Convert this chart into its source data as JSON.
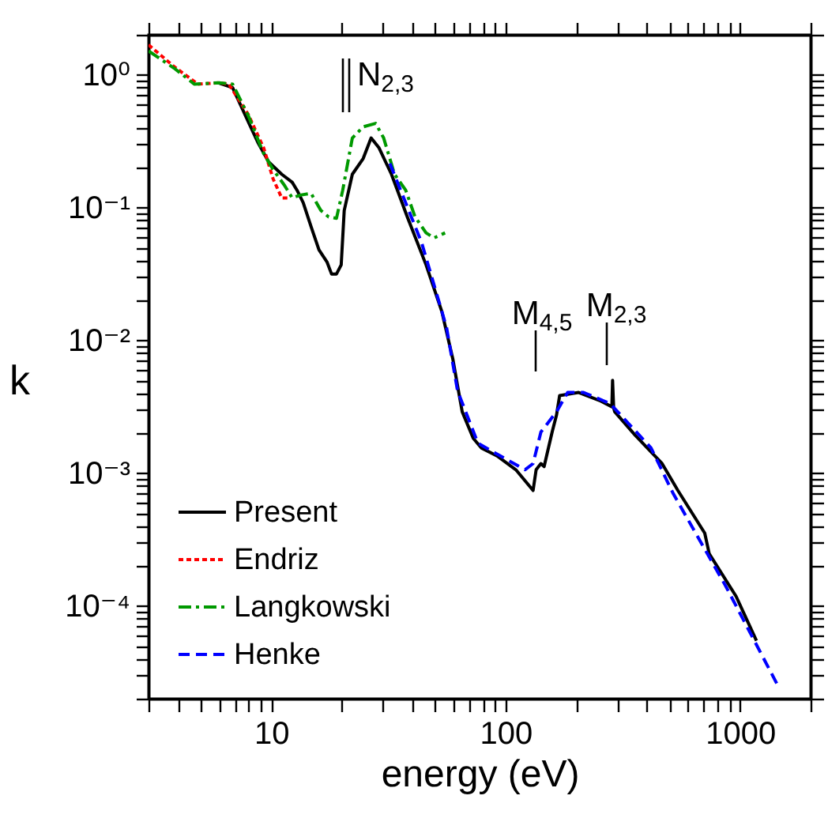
{
  "chart_data": {
    "type": "line",
    "xlabel": "energy (eV)",
    "ylabel": "k",
    "log": "xy",
    "grid": false,
    "legend": "bottom left",
    "xlim": [
      3,
      2000
    ],
    "ylim": [
      2e-05,
      2
    ],
    "xticks": [
      {
        "value": 3,
        "label": null
      },
      {
        "value": 4,
        "label": null
      },
      {
        "value": 5,
        "label": null
      },
      {
        "value": 6,
        "label": null
      },
      {
        "value": 7,
        "label": null
      },
      {
        "value": 8,
        "label": null
      },
      {
        "value": 9,
        "label": null
      },
      10,
      {
        "value": 20,
        "label": null
      },
      {
        "value": 30,
        "label": null
      },
      {
        "value": 40,
        "label": null
      },
      {
        "value": 50,
        "label": null
      },
      {
        "value": 60,
        "label": null
      },
      {
        "value": 70,
        "label": null
      },
      {
        "value": 80,
        "label": null
      },
      {
        "value": 90,
        "label": null
      },
      100,
      {
        "value": 200,
        "label": null
      },
      {
        "value": 300,
        "label": null
      },
      {
        "value": 400,
        "label": null
      },
      {
        "value": 500,
        "label": null
      },
      {
        "value": 600,
        "label": null
      },
      {
        "value": 700,
        "label": null
      },
      {
        "value": 800,
        "label": null
      },
      {
        "value": 900,
        "label": null
      },
      1000,
      {
        "value": 2000,
        "label": null
      }
    ],
    "yticks": [
      {
        "value": 2e-05,
        "label": null
      },
      {
        "value": 3e-05,
        "label": null
      },
      {
        "value": 4e-05,
        "label": null
      },
      {
        "value": 5e-05,
        "label": null
      },
      {
        "value": 6e-05,
        "label": null
      },
      {
        "value": 7e-05,
        "label": null
      },
      {
        "value": 8e-05,
        "label": null
      },
      {
        "value": 9e-05,
        "label": null
      },
      {
        "value": 0.0001,
        "label": "10⁻⁴"
      },
      {
        "value": 0.0002,
        "label": null
      },
      {
        "value": 0.0003,
        "label": null
      },
      {
        "value": 0.0004,
        "label": null
      },
      {
        "value": 0.0005,
        "label": null
      },
      {
        "value": 0.0006,
        "label": null
      },
      {
        "value": 0.0007,
        "label": null
      },
      {
        "value": 0.0008,
        "label": null
      },
      {
        "value": 0.0009,
        "label": null
      },
      {
        "value": 0.001,
        "label": "10⁻³"
      },
      {
        "value": 0.002,
        "label": null
      },
      {
        "value": 0.003,
        "label": null
      },
      {
        "value": 0.004,
        "label": null
      },
      {
        "value": 0.005,
        "label": null
      },
      {
        "value": 0.006,
        "label": null
      },
      {
        "value": 0.007,
        "label": null
      },
      {
        "value": 0.008,
        "label": null
      },
      {
        "value": 0.009,
        "label": null
      },
      {
        "value": 0.01,
        "label": "10⁻²"
      },
      {
        "value": 0.02,
        "label": null
      },
      {
        "value": 0.03,
        "label": null
      },
      {
        "value": 0.04,
        "label": null
      },
      {
        "value": 0.05,
        "label": null
      },
      {
        "value": 0.06,
        "label": null
      },
      {
        "value": 0.07,
        "label": null
      },
      {
        "value": 0.08,
        "label": null
      },
      {
        "value": 0.09,
        "label": null
      },
      {
        "value": 0.1,
        "label": "10⁻¹"
      },
      {
        "value": 0.2,
        "label": null
      },
      {
        "value": 0.3,
        "label": null
      },
      {
        "value": 0.4,
        "label": null
      },
      {
        "value": 0.5,
        "label": null
      },
      {
        "value": 0.6,
        "label": null
      },
      {
        "value": 0.7,
        "label": null
      },
      {
        "value": 0.8,
        "label": null
      },
      {
        "value": 0.9,
        "label": null
      },
      {
        "value": 1,
        "label": "10⁰"
      },
      {
        "value": 2,
        "label": null
      }
    ],
    "annotations": [
      "N$_{2,3}$",
      "M$_{4,5}$",
      "M$_{2,3}$"
    ],
    "series": [
      {
        "name": "Present",
        "color": "#000000",
        "line_style": "solid",
        "x": [
          5.96,
          6.85,
          8.0,
          8.77,
          9.77,
          11.1,
          12.3,
          12.9,
          13.7,
          14.8,
          16.0,
          17.3,
          18.1,
          19.0,
          19.9,
          20.5,
          22.2,
          24.7,
          26.7,
          28.8,
          32.6,
          38.1,
          45.8,
          53.5,
          59.6,
          65.3,
          72.8,
          78.7,
          91.8,
          110.6,
          131,
          135,
          141.5,
          146,
          158,
          165,
          170,
          205,
          251,
          284,
          286,
          289,
          292,
          357,
          465,
          543,
          707,
          739,
          962,
          1175
        ],
        "values": [
          0.87,
          0.8,
          0.44,
          0.31,
          0.22,
          0.178,
          0.155,
          0.135,
          0.109,
          0.072,
          0.048,
          0.039,
          0.0316,
          0.0316,
          0.037,
          0.095,
          0.178,
          0.234,
          0.334,
          0.283,
          0.178,
          0.085,
          0.037,
          0.0164,
          0.0072,
          0.0029,
          0.00183,
          0.00155,
          0.00135,
          0.00106,
          0.00074,
          0.00106,
          0.00118,
          0.00112,
          0.00204,
          0.00275,
          0.00383,
          0.00405,
          0.00353,
          0.00316,
          0.005,
          0.0031,
          0.0029,
          0.00193,
          0.00118,
          0.00074,
          0.000353,
          0.000247,
          0.000118,
          5.47e-05
        ]
      },
      {
        "name": "Endriz",
        "color": "#ff0000",
        "line_style": "dotted",
        "x": [
          3.0,
          3.86,
          4.87,
          6.0,
          6.6,
          8.0,
          9.3,
          10.2,
          11.1,
          11.9
        ],
        "values": [
          1.68,
          1.15,
          0.85,
          0.87,
          0.85,
          0.5,
          0.28,
          0.164,
          0.118,
          0.118
        ]
      },
      {
        "name": "Langkowski",
        "color": "#009900",
        "line_style": "dashdot",
        "x": [
          3.0,
          3.86,
          4.7,
          6.0,
          6.85,
          8.0,
          9.3,
          10.2,
          11.4,
          12.3,
          13.3,
          14.8,
          16.3,
          17.6,
          19.0,
          20.2,
          22.2,
          24.7,
          27.9,
          30.2,
          33.6,
          37.5,
          41.1,
          45.8,
          49.5,
          55.2
        ],
        "values": [
          1.51,
          1.12,
          0.85,
          0.87,
          0.85,
          0.49,
          0.254,
          0.193,
          0.147,
          0.118,
          0.124,
          0.128,
          0.095,
          0.085,
          0.083,
          0.135,
          0.334,
          0.405,
          0.43,
          0.334,
          0.178,
          0.135,
          0.085,
          0.0645,
          0.059,
          0.0645
        ]
      },
      {
        "name": "Henke",
        "color": "#0000ff",
        "line_style": "dashed",
        "x": [
          32.1,
          43.8,
          56,
          62.4,
          76.2,
          100,
          121,
          131,
          141.5,
          165,
          184,
          215,
          279,
          417,
          519,
          865,
          1445
        ],
        "values": [
          0.215,
          0.0547,
          0.0125,
          0.00416,
          0.00168,
          0.00128,
          0.00106,
          0.00118,
          0.00204,
          0.0029,
          0.00405,
          0.00405,
          0.00334,
          0.00155,
          0.0007,
          0.000143,
          2.54e-05
        ]
      }
    ]
  }
}
